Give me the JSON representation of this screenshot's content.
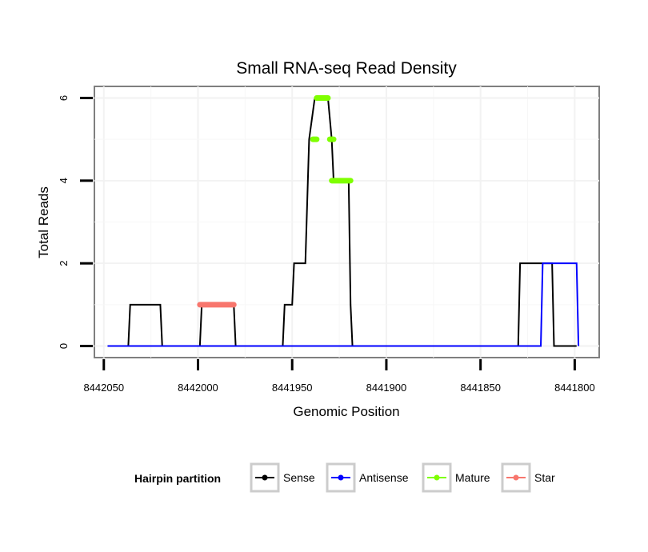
{
  "chart_data": {
    "type": "line",
    "title": "Small RNA-seq Read Density",
    "xlabel": "Genomic Position",
    "ylabel": "Total Reads",
    "x_reversed": true,
    "xlim": [
      8442055,
      8441787
    ],
    "ylim": [
      -0.28,
      6.28
    ],
    "x_ticks": [
      8442050,
      8442000,
      8441950,
      8441900,
      8441850,
      8441800
    ],
    "x_tick_labels": [
      "8442050",
      "8442000",
      "8441950",
      "8441900",
      "8441850",
      "8441800"
    ],
    "y_ticks": [
      0,
      2,
      4,
      6
    ],
    "y_tick_labels": [
      "0",
      "2",
      "4",
      "6"
    ],
    "grid": true,
    "series": [
      {
        "name": "Sense",
        "color": "#000000",
        "points": [
          [
            8442048,
            0
          ],
          [
            8442037,
            0
          ],
          [
            8442036,
            1
          ],
          [
            8442020,
            1
          ],
          [
            8442019,
            0
          ],
          [
            8441999,
            0
          ],
          [
            8441998,
            1
          ],
          [
            8441981,
            1
          ],
          [
            8441980,
            0
          ],
          [
            8441955,
            0
          ],
          [
            8441954,
            1
          ],
          [
            8441950,
            1
          ],
          [
            8441949,
            2
          ],
          [
            8441943,
            2
          ],
          [
            8441941,
            5
          ],
          [
            8441938,
            6
          ],
          [
            8441931,
            6
          ],
          [
            8441929,
            5
          ],
          [
            8441928,
            4
          ],
          [
            8441920,
            4
          ],
          [
            8441919,
            1
          ],
          [
            8441918,
            0
          ],
          [
            8441830,
            0
          ],
          [
            8441829,
            2
          ],
          [
            8441812,
            2
          ],
          [
            8441811,
            0
          ],
          [
            8441799,
            0
          ]
        ]
      },
      {
        "name": "Antisense",
        "color": "#0000ff",
        "points": [
          [
            8442048,
            0
          ],
          [
            8441818,
            0
          ],
          [
            8441817,
            2
          ],
          [
            8441799,
            2
          ],
          [
            8441798,
            0
          ]
        ]
      },
      {
        "name": "Mature",
        "color": "#7fff00",
        "segments": [
          {
            "x": [
              8441939,
              8441937
            ],
            "y": 5
          },
          {
            "x": [
              8441937,
              8441931
            ],
            "y": 6
          },
          {
            "x": [
              8441930,
              8441928
            ],
            "y": 5
          },
          {
            "x": [
              8441929,
              8441919
            ],
            "y": 4
          }
        ]
      },
      {
        "name": "Star",
        "color": "#f8766d",
        "segments": [
          {
            "x": [
              8441999,
              8441981
            ],
            "y": 1
          }
        ]
      }
    ],
    "legend": {
      "title": "Hairpin partition",
      "position": "bottom",
      "entries": [
        {
          "label": "Sense",
          "color": "#000000"
        },
        {
          "label": "Antisense",
          "color": "#0000ff"
        },
        {
          "label": "Mature",
          "color": "#7fff00"
        },
        {
          "label": "Star",
          "color": "#f8766d"
        }
      ]
    }
  }
}
